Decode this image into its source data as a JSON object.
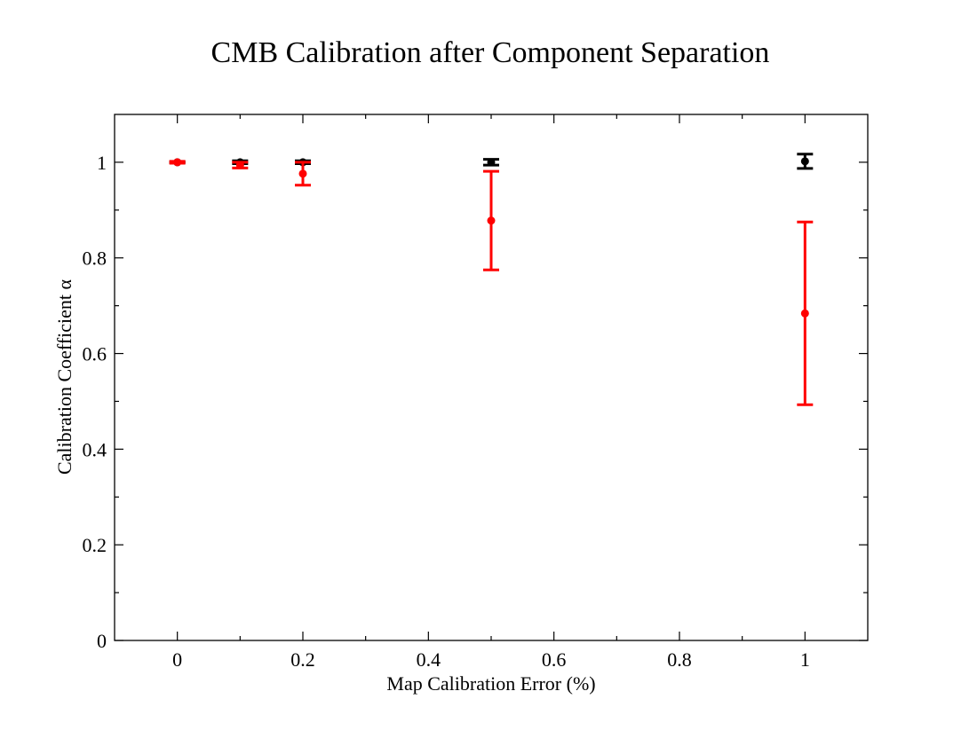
{
  "chart_data": {
    "type": "scatter",
    "title": "CMB Calibration after Component Separation",
    "xlabel": "Map Calibration Error (%)",
    "ylabel": "Calibration Coefficient α",
    "xlim": [
      -0.1,
      1.1
    ],
    "ylim": [
      0,
      1.1
    ],
    "x_ticks": [
      0,
      0.2,
      0.4,
      0.6,
      0.8,
      1
    ],
    "x_tick_labels": [
      "0",
      "0.2",
      "0.4",
      "0.6",
      "0.8",
      "1"
    ],
    "x_minor_ticks": [
      0.1,
      0.3,
      0.5,
      0.7,
      0.9
    ],
    "y_ticks": [
      0,
      0.2,
      0.4,
      0.6,
      0.8,
      1
    ],
    "y_tick_labels": [
      "0",
      "0.2",
      "0.4",
      "0.6",
      "0.8",
      "1"
    ],
    "y_minor_ticks": [
      0.1,
      0.3,
      0.5,
      0.7,
      0.9
    ],
    "grid": false,
    "series": [
      {
        "name": "series-black",
        "color": "#000000",
        "points": [
          {
            "x": 0.0,
            "y": 1.0,
            "err": 0.001
          },
          {
            "x": 0.1,
            "y": 1.0,
            "err": 0.003
          },
          {
            "x": 0.2,
            "y": 1.0,
            "err": 0.003
          },
          {
            "x": 0.5,
            "y": 1.0,
            "err": 0.006
          },
          {
            "x": 1.0,
            "y": 1.002,
            "err": 0.015
          }
        ]
      },
      {
        "name": "series-red",
        "color": "#ff0000",
        "points": [
          {
            "x": 0.0,
            "y": 1.0,
            "err": 0.002
          },
          {
            "x": 0.1,
            "y": 0.994,
            "err": 0.006
          },
          {
            "x": 0.2,
            "y": 0.976,
            "err": 0.024
          },
          {
            "x": 0.5,
            "y": 0.878,
            "err": 0.103
          },
          {
            "x": 1.0,
            "y": 0.684,
            "err": 0.191
          }
        ]
      }
    ]
  }
}
